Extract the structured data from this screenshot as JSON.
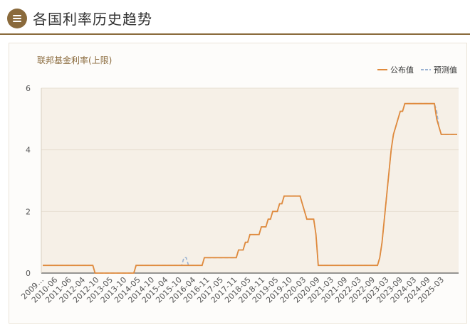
{
  "header": {
    "title": "各国利率历史趋势",
    "menu_icon": "menu-icon"
  },
  "colors": {
    "accent": "#8a6a3c",
    "actual": "#e08a3c",
    "forecast": "#9bb3d3",
    "plot_bg": "#f6f0e7",
    "axis_text": "#555555"
  },
  "chart_data": {
    "type": "line",
    "title": "",
    "ylabel": "联邦基金利率(上限)",
    "ylim": [
      0,
      6
    ],
    "yticks": [
      0,
      2,
      4,
      6
    ],
    "xlabels": [
      "2009…",
      "2010-06",
      "2011-06",
      "2012-04",
      "2012-10",
      "2013-05",
      "2013-10",
      "2014-05",
      "2014-10",
      "2015-04",
      "2015-10",
      "2016-04",
      "2016-11",
      "2017-05",
      "2017-11",
      "2018-05",
      "2018-11",
      "2019-05",
      "2019-10",
      "2020-03",
      "2020-09",
      "2021-03",
      "2021-09",
      "2022-03",
      "2022-09",
      "2023-03",
      "2023-09",
      "2024-03",
      "2024-09",
      "2025-03"
    ],
    "legend_position": "top-right",
    "series": [
      {
        "name": "公布值",
        "style": "solid",
        "values": [
          0.25,
          0.25,
          0.25,
          0.25,
          0.25,
          0.25,
          0.25,
          0.25,
          0.25,
          0.25,
          0.25,
          0.25,
          0.25,
          0.25,
          0.25,
          0.25,
          0.25,
          0.25,
          0.25,
          0.25,
          0.25,
          0.25,
          0.25,
          0,
          0,
          0,
          0,
          0,
          0,
          0,
          0,
          0,
          0,
          0,
          0,
          0,
          0,
          0,
          0,
          0,
          0,
          0.25,
          0.25,
          0.25,
          0.25,
          0.25,
          0.25,
          0.25,
          0.25,
          0.25,
          0.25,
          0.25,
          0.25,
          0.25,
          0.25,
          0.25,
          0.25,
          0.25,
          0.25,
          0.25,
          0.25,
          0.25,
          0.25,
          0.25,
          0.25,
          0.25,
          0.25,
          0.25,
          0.25,
          0.25,
          0.25,
          0.5,
          0.5,
          0.5,
          0.5,
          0.5,
          0.5,
          0.5,
          0.5,
          0.5,
          0.5,
          0.5,
          0.5,
          0.5,
          0.5,
          0.5,
          0.75,
          0.75,
          0.75,
          1,
          1,
          1.25,
          1.25,
          1.25,
          1.25,
          1.25,
          1.5,
          1.5,
          1.5,
          1.75,
          1.75,
          2,
          2,
          2,
          2.25,
          2.25,
          2.5,
          2.5,
          2.5,
          2.5,
          2.5,
          2.5,
          2.5,
          2.5,
          2.25,
          2,
          1.75,
          1.75,
          1.75,
          1.75,
          1.25,
          0.25,
          0.25,
          0.25,
          0.25,
          0.25,
          0.25,
          0.25,
          0.25,
          0.25,
          0.25,
          0.25,
          0.25,
          0.25,
          0.25,
          0.25,
          0.25,
          0.25,
          0.25,
          0.25,
          0.25,
          0.25,
          0.25,
          0.25,
          0.25,
          0.25,
          0.25,
          0.25,
          0.5,
          1,
          1.75,
          2.5,
          3.25,
          4,
          4.5,
          4.75,
          5,
          5.25,
          5.25,
          5.5,
          5.5,
          5.5,
          5.5,
          5.5,
          5.5,
          5.5,
          5.5,
          5.5,
          5.5,
          5.5,
          5.5,
          5.5,
          5.5,
          5,
          4.75,
          4.5,
          4.5,
          4.5,
          4.5,
          4.5,
          4.5,
          4.5,
          4.5
        ]
      },
      {
        "name": "预测值",
        "style": "dashed",
        "values": [
          0.25,
          0.25,
          0.25,
          0.25,
          0.25,
          0.25,
          0.25,
          0.25,
          0.25,
          0.25,
          0.25,
          0.25,
          0.25,
          0.25,
          0.25,
          0.25,
          0.25,
          0.25,
          0.25,
          0.25,
          0.25,
          0.25,
          0.25,
          0,
          0,
          0,
          0,
          0,
          0,
          0,
          0,
          0,
          0,
          0,
          0,
          0,
          0,
          0,
          0,
          0,
          0,
          0.25,
          0.25,
          0.25,
          0.25,
          0.25,
          0.25,
          0.25,
          0.25,
          0.25,
          0.25,
          0.25,
          0.25,
          0.25,
          0.25,
          0.25,
          0.25,
          0.25,
          0.25,
          0.25,
          0.25,
          0.25,
          0.5,
          0.5,
          0.25,
          0.25,
          0.25,
          0.25,
          0.25,
          0.25,
          0.25,
          0.5,
          0.5,
          0.5,
          0.5,
          0.5,
          0.5,
          0.5,
          0.5,
          0.5,
          0.5,
          0.5,
          0.5,
          0.5,
          0.5,
          0.5,
          0.75,
          0.75,
          0.75,
          1,
          1,
          1.25,
          1.25,
          1.25,
          1.25,
          1.25,
          1.5,
          1.5,
          1.5,
          1.75,
          1.75,
          2,
          2,
          2,
          2.25,
          2.25,
          2.5,
          2.5,
          2.5,
          2.5,
          2.5,
          2.5,
          2.5,
          2.5,
          2.25,
          2,
          1.75,
          1.75,
          1.75,
          1.75,
          1.25,
          0.25,
          0.25,
          0.25,
          0.25,
          0.25,
          0.25,
          0.25,
          0.25,
          0.25,
          0.25,
          0.25,
          0.25,
          0.25,
          0.25,
          0.25,
          0.25,
          0.25,
          0.25,
          0.25,
          0.25,
          0.25,
          0.25,
          0.25,
          0.25,
          0.25,
          0.25,
          0.25,
          0.5,
          1,
          1.75,
          2.5,
          3.25,
          4,
          4.5,
          4.75,
          5,
          5.25,
          5.25,
          5.5,
          5.5,
          5.5,
          5.5,
          5.5,
          5.5,
          5.5,
          5.5,
          5.5,
          5.5,
          5.5,
          5.5,
          5.5,
          5.5,
          5.25,
          4.75,
          4.5,
          4.5,
          4.5,
          4.5,
          4.5,
          4.5,
          4.5,
          4.5
        ]
      }
    ]
  }
}
